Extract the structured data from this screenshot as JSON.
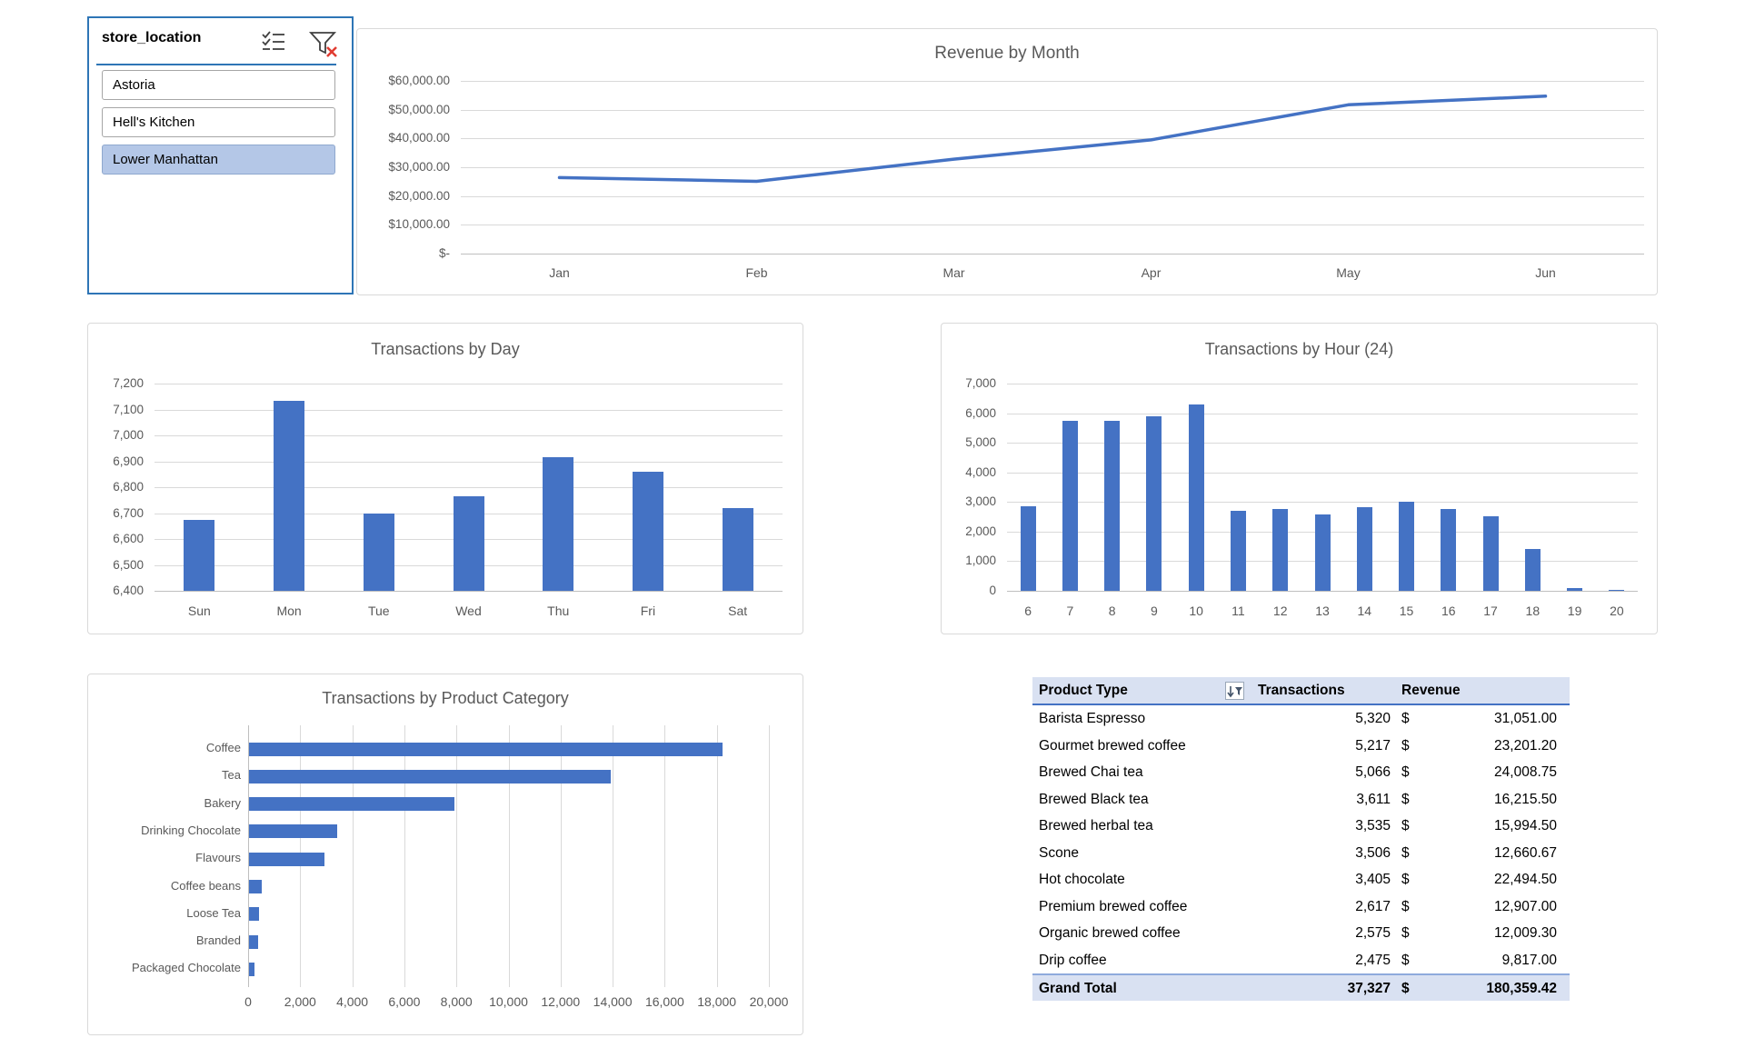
{
  "colors": {
    "accent": "#4472C4",
    "grid": "#D9D9D9",
    "axis_line": "#BFBFBF",
    "axis_text": "#595959",
    "slicer_border": "#2E75B6",
    "slicer_selected_bg": "#B4C7E7",
    "table_header_bg": "#D9E1F2",
    "table_header_rule": "#4472C4",
    "clear_filter_x": "#E03C31"
  },
  "slicer": {
    "title": "store_location",
    "items": [
      {
        "label": "Astoria",
        "selected": false
      },
      {
        "label": "Hell's Kitchen",
        "selected": false
      },
      {
        "label": "Lower Manhattan",
        "selected": true
      }
    ]
  },
  "chart_data": [
    {
      "id": "revenue_by_month",
      "type": "line",
      "title": "Revenue by Month",
      "categories": [
        "Jan",
        "Feb",
        "Mar",
        "Apr",
        "May",
        "Jun"
      ],
      "values": [
        26400,
        25100,
        32800,
        39500,
        51700,
        54700
      ],
      "ylabel": "",
      "xlabel": "",
      "ylim": [
        0,
        60000
      ],
      "ytick_labels_top_down": [
        "$60,000.00",
        "$50,000.00",
        "$40,000.00",
        "$30,000.00",
        "$20,000.00",
        "$10,000.00",
        "$-"
      ],
      "grid": true,
      "legend": "none"
    },
    {
      "id": "transactions_by_day",
      "type": "bar",
      "title": "Transactions by Day",
      "categories": [
        "Sun",
        "Mon",
        "Tue",
        "Wed",
        "Thu",
        "Fri",
        "Sat"
      ],
      "values": [
        6675,
        7135,
        6700,
        6765,
        6915,
        6860,
        6720
      ],
      "ylim": [
        6400,
        7200
      ],
      "ytick_labels_top_down": [
        "7,200",
        "7,100",
        "7,000",
        "6,900",
        "6,800",
        "6,700",
        "6,600",
        "6,500",
        "6,400"
      ],
      "grid": true,
      "legend": "none"
    },
    {
      "id": "transactions_by_hour",
      "type": "bar",
      "title": "Transactions by Hour (24)",
      "categories": [
        "6",
        "7",
        "8",
        "9",
        "10",
        "11",
        "12",
        "13",
        "14",
        "15",
        "16",
        "17",
        "18",
        "19",
        "20"
      ],
      "values": [
        2860,
        5750,
        5750,
        5900,
        6290,
        2700,
        2760,
        2580,
        2810,
        3000,
        2760,
        2520,
        1400,
        90,
        40
      ],
      "ylim": [
        0,
        7000
      ],
      "ytick_labels_top_down": [
        "7,000",
        "6,000",
        "5,000",
        "4,000",
        "3,000",
        "2,000",
        "1,000",
        "0"
      ],
      "grid": true,
      "legend": "none"
    },
    {
      "id": "transactions_by_product_category",
      "type": "bar-horizontal",
      "title": "Transactions by Product Category",
      "categories": [
        "Coffee",
        "Tea",
        "Bakery",
        "Drinking Chocolate",
        "Flavours",
        "Coffee beans",
        "Loose Tea",
        "Branded",
        "Packaged Chocolate"
      ],
      "values": [
        18200,
        13900,
        7900,
        3400,
        2900,
        500,
        400,
        350,
        200
      ],
      "xlim": [
        0,
        20000
      ],
      "xtick_labels": [
        "0",
        "2,000",
        "4,000",
        "6,000",
        "8,000",
        "10,000",
        "12,000",
        "14,000",
        "16,000",
        "18,000",
        "20,000"
      ],
      "grid": true,
      "legend": "none"
    }
  ],
  "table": {
    "headers": {
      "product": "Product Type",
      "transactions": "Transactions",
      "revenue": "Revenue"
    },
    "rows": [
      {
        "product": "Barista Espresso",
        "transactions": "5,320",
        "currency": "$",
        "revenue": "31,051.00"
      },
      {
        "product": "Gourmet brewed coffee",
        "transactions": "5,217",
        "currency": "$",
        "revenue": "23,201.20"
      },
      {
        "product": "Brewed Chai tea",
        "transactions": "5,066",
        "currency": "$",
        "revenue": "24,008.75"
      },
      {
        "product": "Brewed Black tea",
        "transactions": "3,611",
        "currency": "$",
        "revenue": "16,215.50"
      },
      {
        "product": "Brewed herbal tea",
        "transactions": "3,535",
        "currency": "$",
        "revenue": "15,994.50"
      },
      {
        "product": "Scone",
        "transactions": "3,506",
        "currency": "$",
        "revenue": "12,660.67"
      },
      {
        "product": "Hot chocolate",
        "transactions": "3,405",
        "currency": "$",
        "revenue": "22,494.50"
      },
      {
        "product": "Premium brewed coffee",
        "transactions": "2,617",
        "currency": "$",
        "revenue": "12,907.00"
      },
      {
        "product": "Organic brewed coffee",
        "transactions": "2,575",
        "currency": "$",
        "revenue": "12,009.30"
      },
      {
        "product": "Drip coffee",
        "transactions": "2,475",
        "currency": "$",
        "revenue": "9,817.00"
      }
    ],
    "grand_total": {
      "product": "Grand Total",
      "transactions": "37,327",
      "currency": "$",
      "revenue": "180,359.42"
    }
  }
}
